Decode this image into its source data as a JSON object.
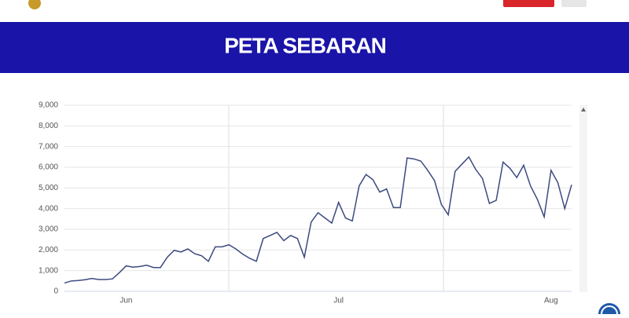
{
  "header": {
    "title": "PETA SEBARAN"
  },
  "chart_data": {
    "type": "line",
    "categories": [
      null,
      null,
      null,
      null,
      null,
      null,
      null,
      null,
      null,
      "Jun",
      null,
      null,
      null,
      null,
      null,
      null,
      null,
      null,
      null,
      null,
      null,
      null,
      null,
      null,
      null,
      null,
      null,
      null,
      null,
      null,
      null,
      null,
      null,
      null,
      null,
      null,
      null,
      null,
      null,
      null,
      "Jul",
      null,
      null,
      null,
      null,
      null,
      null,
      null,
      null,
      null,
      null,
      null,
      null,
      null,
      null,
      null,
      null,
      null,
      null,
      null,
      null,
      null,
      null,
      null,
      null,
      null,
      null,
      null,
      null,
      null,
      null,
      "Aug",
      null,
      null,
      null
    ],
    "series": [
      {
        "color": "#3d4a7f",
        "values": [
          400,
          500,
          520,
          560,
          620,
          570,
          570,
          600,
          900,
          1230,
          1170,
          1200,
          1260,
          1150,
          1150,
          1650,
          1980,
          1900,
          2050,
          1820,
          1720,
          1450,
          2150,
          2150,
          2250,
          2050,
          1800,
          1600,
          1450,
          2550,
          2700,
          2850,
          2450,
          2700,
          2550,
          1650,
          3350,
          3800,
          3550,
          3300,
          4300,
          3550,
          3400,
          5100,
          5650,
          5400,
          4800,
          4950,
          4050,
          4050,
          6450,
          6400,
          6300,
          5850,
          5350,
          4200,
          3700,
          5800,
          6150,
          6500,
          5900,
          5450,
          4250,
          4400,
          6250,
          5950,
          5500,
          6100,
          5100,
          4450,
          3600,
          5850,
          5250,
          4000,
          5150
        ]
      }
    ],
    "ylim": [
      0,
      9000
    ],
    "yticks": [
      0,
      {
        "value": 1000,
        "label": "1,000"
      },
      {
        "value": 2000,
        "label": "2,000"
      },
      {
        "value": 3000,
        "label": "3,000"
      },
      {
        "value": 4000,
        "label": "4,000"
      },
      {
        "value": 5000,
        "label": "5,000"
      },
      {
        "value": 6000,
        "label": "6,000"
      },
      {
        "value": 7000,
        "label": "7,000"
      },
      {
        "value": 8000,
        "label": "8,000"
      },
      {
        "value": 9000,
        "label": "9,000"
      }
    ],
    "grid": true
  }
}
